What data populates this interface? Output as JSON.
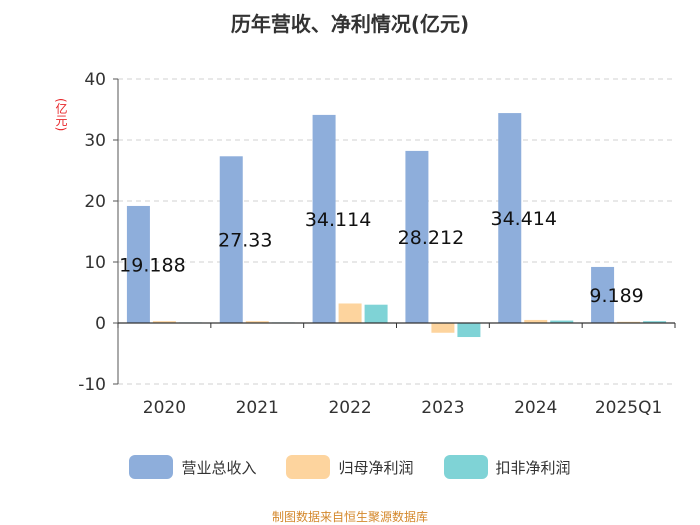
{
  "chart_data": {
    "type": "bar",
    "title": "历年营收、净利情况(亿元)",
    "ylabel": "(亿元)",
    "categories": [
      "2020",
      "2021",
      "2022",
      "2023",
      "2024",
      "2025Q1"
    ],
    "series": [
      {
        "name": "营业总收入",
        "color": "#8eaedb",
        "values": [
          19.188,
          27.33,
          34.114,
          28.212,
          34.414,
          9.189
        ]
      },
      {
        "name": "归母净利润",
        "color": "#fdd49e",
        "values": [
          0.3,
          0.3,
          3.2,
          -1.6,
          0.5,
          0.2
        ]
      },
      {
        "name": "扣非净利润",
        "color": "#7fd3d6",
        "values": [
          0.1,
          0.1,
          3.0,
          -2.3,
          0.4,
          0.3
        ]
      }
    ],
    "data_labels": [
      "19.188",
      "27.33",
      "34.114",
      "28.212",
      "34.414",
      "9.189"
    ],
    "yticks": [
      "40",
      "30",
      "20",
      "10",
      "0",
      "-10"
    ],
    "ylim": [
      -10,
      40
    ],
    "grid": true,
    "legend_position": "bottom"
  },
  "source": "制图数据来自恒生聚源数据库"
}
